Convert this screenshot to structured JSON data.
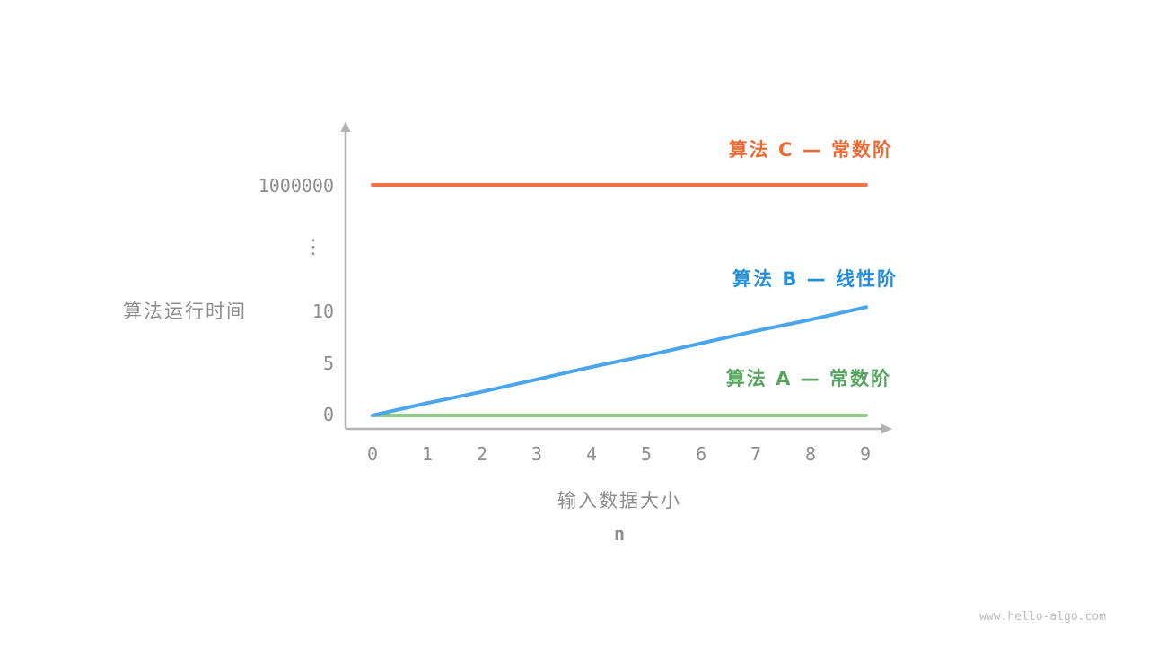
{
  "figure": {
    "watermark": "www.hello-algo.com"
  },
  "axes": {
    "y_title": "算法运行时间",
    "x_title": "输入数据大小",
    "x_subtitle": "n",
    "y_ticks": [
      "1000000",
      "⋮",
      "10",
      "5",
      "0"
    ],
    "x_ticks": [
      "0",
      "1",
      "2",
      "3",
      "4",
      "5",
      "6",
      "7",
      "8",
      "9"
    ]
  },
  "legend": {
    "c": "算法 C — 常数阶",
    "b": "算法 B — 线性阶",
    "a": "算法 A — 常数阶"
  },
  "colors": {
    "algorithm_a_line": "#8FCD86",
    "algorithm_a_text": "#55A45F",
    "algorithm_b_line": "#4BA5EC",
    "algorithm_b_text": "#2490DC",
    "algorithm_c_line": "#F0714B",
    "algorithm_c_text": "#ED6A35",
    "axis": "#B3B3B3",
    "tick_text": "#8D8D8D"
  },
  "chart_data": {
    "type": "line",
    "title": "",
    "xlabel": "输入数据大小 n",
    "ylabel": "算法运行时间",
    "x": [
      0,
      1,
      2,
      3,
      4,
      5,
      6,
      7,
      8,
      9
    ],
    "x_ticks": [
      "0",
      "1",
      "2",
      "3",
      "4",
      "5",
      "6",
      "7",
      "8",
      "9"
    ],
    "y_ticks": [
      "0",
      "5",
      "10",
      "⋮",
      "1000000"
    ],
    "y_axis_broken": true,
    "grid": false,
    "legend_position": "right-of-lines",
    "series": [
      {
        "name": "算法 A — 常数阶",
        "color": "#8FCD86",
        "values": [
          0,
          0,
          0,
          0,
          0,
          0,
          0,
          0,
          0,
          0
        ]
      },
      {
        "name": "算法 B — 线性阶",
        "color": "#4BA5EC",
        "values": [
          0,
          1.2,
          2.3,
          3.5,
          4.7,
          5.8,
          7.0,
          8.2,
          9.3,
          10.5
        ]
      },
      {
        "name": "算法 C — 常数阶",
        "color": "#F0714B",
        "values": [
          1000000,
          1000000,
          1000000,
          1000000,
          1000000,
          1000000,
          1000000,
          1000000,
          1000000,
          1000000
        ]
      }
    ]
  }
}
